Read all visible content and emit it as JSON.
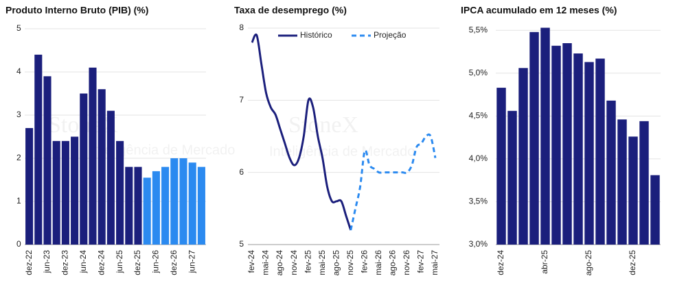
{
  "watermark": {
    "brand": "StoneX",
    "tagline": "Inteligência de Mercado"
  },
  "chart_data": [
    {
      "type": "bar",
      "title": "Produto Interno Bruto (PIB)  (%)",
      "categories": [
        "dez-22",
        null,
        "jun-23",
        null,
        "dez-23",
        null,
        "jun-24",
        null,
        "dez-24",
        null,
        "jun-25",
        null,
        "dez-25",
        null,
        "jun-26",
        null,
        "dez-26",
        null,
        "jun-27",
        null
      ],
      "series": [
        {
          "color": "#1b1f7c",
          "values": [
            2.7,
            4.4,
            3.9,
            2.4,
            2.4,
            2.5,
            3.5,
            4.1,
            3.6,
            3.1,
            2.4,
            1.8,
            1.8,
            null,
            null,
            null,
            null,
            null,
            null,
            null
          ]
        },
        {
          "color": "#2b8af0",
          "values": [
            null,
            null,
            null,
            null,
            null,
            null,
            null,
            null,
            null,
            null,
            null,
            null,
            null,
            1.55,
            1.7,
            1.8,
            2.0,
            2.0,
            1.9,
            1.8
          ]
        }
      ],
      "ylim": [
        0,
        5
      ],
      "yticks": [
        0,
        1,
        2,
        3,
        4,
        5
      ],
      "grid": true
    },
    {
      "type": "line",
      "title": "Taxa de desemprego (%)",
      "categories": [
        "fev-24",
        null,
        null,
        "mai-24",
        null,
        null,
        "ago-24",
        null,
        null,
        "nov-24",
        null,
        null,
        "fev-25",
        null,
        null,
        "mai-25",
        null,
        null,
        "ago-25",
        null,
        null,
        "nov-25",
        null,
        null,
        "fev-26",
        null,
        null,
        "mai-26",
        null,
        null,
        "ago-26",
        null,
        null,
        "nov-26",
        null,
        null,
        "fev-27",
        null,
        null,
        "mai-27"
      ],
      "series": [
        {
          "name": "Histórico",
          "color": "#1b1f7c",
          "dash": false,
          "values": [
            7.8,
            7.9,
            7.5,
            7.1,
            6.9,
            6.8,
            6.6,
            6.4,
            6.2,
            6.1,
            6.2,
            6.5,
            7.0,
            6.9,
            6.5,
            6.2,
            5.8,
            5.6,
            5.6,
            5.6,
            5.4,
            5.2,
            null,
            null,
            null,
            null,
            null,
            null,
            null,
            null,
            null,
            null,
            null,
            null,
            null,
            null,
            null,
            null,
            null,
            null
          ]
        },
        {
          "name": "Projeção",
          "color": "#2b8af0",
          "dash": true,
          "values": [
            null,
            null,
            null,
            null,
            null,
            null,
            null,
            null,
            null,
            null,
            null,
            null,
            null,
            null,
            null,
            null,
            null,
            null,
            null,
            null,
            null,
            5.2,
            5.5,
            5.8,
            6.3,
            6.1,
            6.05,
            6.0,
            6.0,
            6.0,
            6.0,
            6.0,
            6.0,
            6.0,
            6.1,
            6.35,
            6.4,
            6.5,
            6.5,
            6.2
          ]
        }
      ],
      "ylim": [
        5,
        8
      ],
      "yticks": [
        5,
        6,
        7,
        8
      ],
      "grid": true,
      "legend": "top"
    },
    {
      "type": "bar",
      "title": "IPCA acumulado em 12 meses (%)",
      "categories": [
        "dez-24",
        null,
        null,
        null,
        "abr-25",
        null,
        null,
        null,
        "ago-25",
        null,
        null,
        null,
        "dez-25",
        null,
        null
      ],
      "series": [
        {
          "color": "#1b1f7c",
          "values": [
            4.83,
            4.56,
            5.06,
            5.48,
            5.53,
            5.32,
            5.35,
            5.23,
            5.13,
            5.17,
            4.68,
            4.46,
            4.26,
            4.44,
            3.81
          ]
        }
      ],
      "ylim": [
        3.0,
        5.55
      ],
      "yticks": [
        {
          "value": 3.0,
          "label": "3,0%"
        },
        {
          "value": 3.5,
          "label": "3,5%"
        },
        {
          "value": 4.0,
          "label": "4,0%"
        },
        {
          "value": 4.5,
          "label": "4,5%"
        },
        {
          "value": 5.0,
          "label": "5,0%"
        },
        {
          "value": 5.5,
          "label": "5,5%"
        }
      ],
      "grid": true
    }
  ]
}
